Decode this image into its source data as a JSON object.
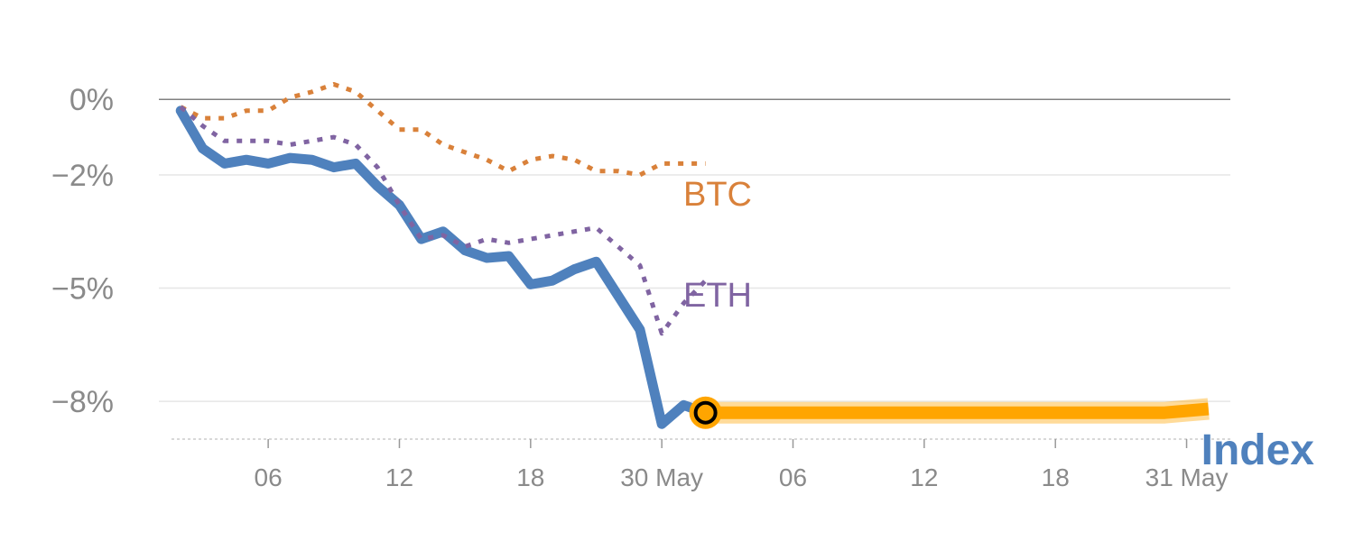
{
  "chart_data": {
    "type": "line",
    "title": "",
    "xlabel": "",
    "ylabel": "",
    "y_ticks": [
      {
        "value": 0,
        "label": "0%"
      },
      {
        "value": -2,
        "label": "−2%"
      },
      {
        "value": -5,
        "label": "−5%"
      },
      {
        "value": -8,
        "label": "−8%"
      }
    ],
    "x_ticks": [
      {
        "x": 4,
        "label": "06"
      },
      {
        "x": 10,
        "label": "12"
      },
      {
        "x": 16,
        "label": "18"
      },
      {
        "x": 22,
        "label": "30 May"
      },
      {
        "x": 28,
        "label": "06"
      },
      {
        "x": 34,
        "label": "12"
      },
      {
        "x": 40,
        "label": "18"
      },
      {
        "x": 46,
        "label": "31 May"
      }
    ],
    "xlim": [
      -1,
      48
    ],
    "ylim": [
      -9,
      1.2
    ],
    "grid": true,
    "colors": {
      "index": "#4f81bd",
      "btc": "#d9813a",
      "eth": "#8064a2",
      "forecast": "#ffa500",
      "zero_line": "#808080",
      "grid": "#e6e6e6",
      "tick_text": "#8a8a8a"
    },
    "series": [
      {
        "name": "Index",
        "style": "solid",
        "x": [
          0,
          1,
          2,
          3,
          4,
          5,
          6,
          7,
          8,
          9,
          10,
          11,
          12,
          13,
          14,
          15,
          16,
          17,
          18,
          19,
          20,
          21,
          22,
          23,
          24
        ],
        "y": [
          -0.3,
          -1.3,
          -1.7,
          -1.6,
          -1.7,
          -1.55,
          -1.6,
          -1.8,
          -1.7,
          -2.3,
          -2.8,
          -3.7,
          -3.5,
          -4.0,
          -4.2,
          -4.15,
          -4.9,
          -4.8,
          -4.5,
          -4.3,
          -5.2,
          -6.1,
          -8.6,
          -8.1,
          -8.3
        ]
      },
      {
        "name": "BTC",
        "style": "dotted",
        "x": [
          0,
          1,
          2,
          3,
          4,
          5,
          6,
          7,
          8,
          9,
          10,
          11,
          12,
          13,
          14,
          15,
          16,
          17,
          18,
          19,
          20,
          21,
          22,
          23,
          24
        ],
        "y": [
          -0.2,
          -0.5,
          -0.5,
          -0.3,
          -0.3,
          0.05,
          0.2,
          0.4,
          0.2,
          -0.3,
          -0.8,
          -0.8,
          -1.2,
          -1.4,
          -1.6,
          -1.9,
          -1.6,
          -1.5,
          -1.6,
          -1.9,
          -1.9,
          -2.0,
          -1.7,
          -1.7,
          -1.7
        ]
      },
      {
        "name": "ETH",
        "style": "dotted",
        "x": [
          0,
          1,
          2,
          3,
          4,
          5,
          6,
          7,
          8,
          9,
          10,
          11,
          12,
          13,
          14,
          15,
          16,
          17,
          18,
          19,
          20,
          21,
          22,
          23,
          24
        ],
        "y": [
          -0.2,
          -0.7,
          -1.1,
          -1.1,
          -1.1,
          -1.2,
          -1.1,
          -1.0,
          -1.2,
          -1.8,
          -2.8,
          -3.7,
          -3.6,
          -3.9,
          -3.7,
          -3.8,
          -3.7,
          -3.6,
          -3.5,
          -3.4,
          -3.9,
          -4.4,
          -6.2,
          -5.4,
          -4.8
        ]
      }
    ],
    "forecast": {
      "x": [
        24,
        25,
        30,
        35,
        40,
        45,
        46,
        47
      ],
      "y": [
        -8.3,
        -8.3,
        -8.3,
        -8.3,
        -8.3,
        -8.3,
        -8.25,
        -8.2
      ]
    },
    "labels": {
      "index": "Index",
      "btc": "BTC",
      "eth": "ETH"
    }
  }
}
